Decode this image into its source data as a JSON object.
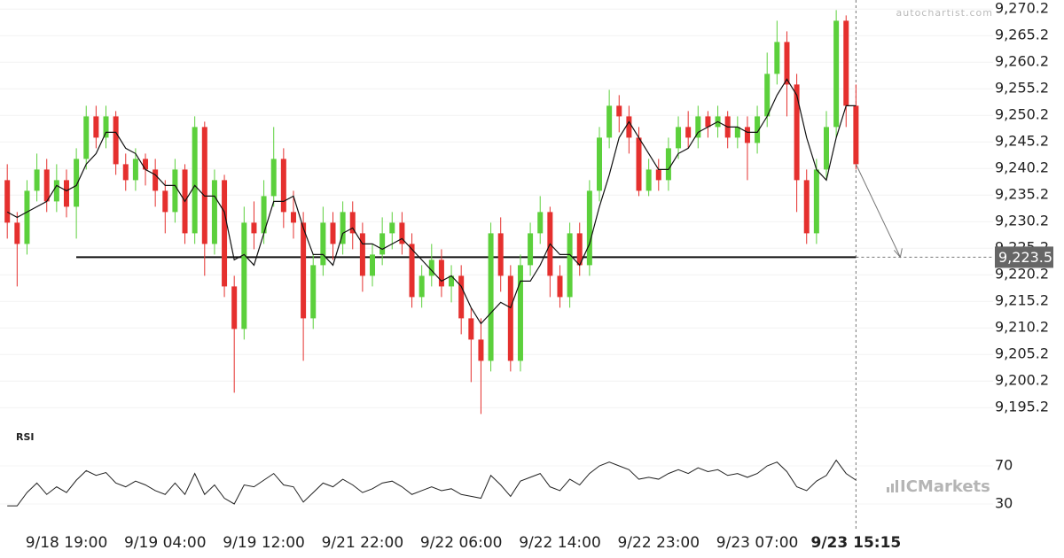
{
  "chart_data": {
    "type": "candlestick",
    "watermark": "autochartist.com",
    "brand": "ICMarkets",
    "indicator_label": "RSI",
    "categories": [
      null,
      null,
      null,
      null,
      null,
      null,
      "9/18 19:00",
      null,
      null,
      null,
      null,
      null,
      null,
      null,
      null,
      null,
      "9/19 04:00",
      null,
      null,
      null,
      null,
      null,
      null,
      null,
      null,
      null,
      "9/19 12:00",
      null,
      null,
      null,
      null,
      null,
      null,
      null,
      null,
      null,
      "9/21 22:00",
      null,
      null,
      null,
      null,
      null,
      null,
      null,
      null,
      null,
      "9/22 06:00",
      null,
      null,
      null,
      null,
      null,
      null,
      null,
      null,
      null,
      "9/22 14:00",
      null,
      null,
      null,
      null,
      null,
      null,
      null,
      null,
      null,
      "9/22 23:00",
      null,
      null,
      null,
      null,
      null,
      null,
      null,
      null,
      null,
      "9/23 07:00",
      null,
      null,
      null,
      null,
      null,
      null,
      null,
      null,
      null,
      "9/23 15:15"
    ],
    "open": [
      9238,
      9230,
      9226,
      9236,
      9240,
      9234,
      9238,
      9233,
      9242,
      9250,
      9246,
      9250,
      9241,
      9238,
      9242,
      9240,
      9236,
      9232,
      9240,
      9228,
      9248,
      9226,
      9238,
      9218,
      9210,
      9230,
      9228,
      9235,
      9242,
      9232,
      9230,
      9212,
      9222,
      9230,
      9226,
      9232,
      9228,
      9220,
      9224,
      9228,
      9230,
      9226,
      9216,
      9220,
      9223,
      9218,
      9220,
      9212,
      9208,
      9204,
      9228,
      9220,
      9204,
      9222,
      9228,
      9232,
      9220,
      9216,
      9228,
      9222,
      9236,
      9246,
      9252,
      9250,
      9246,
      9236,
      9240,
      9238,
      9244,
      9248,
      9246,
      9250,
      9248,
      9250,
      9246,
      9248,
      9245,
      9250,
      9258,
      9264,
      9256,
      9238,
      9228,
      9240,
      9248,
      9268,
      9252
    ],
    "high": [
      9241,
      9232,
      9238,
      9243,
      9242,
      9241,
      9240,
      9244,
      9252,
      9252,
      9252,
      9251,
      9243,
      9244,
      9243,
      9242,
      9238,
      9242,
      9241,
      9250,
      9249,
      9240,
      9239,
      9220,
      9233,
      9234,
      9238,
      9248,
      9244,
      9236,
      9232,
      9224,
      9233,
      9232,
      9234,
      9234,
      9230,
      9226,
      9231,
      9232,
      9232,
      9228,
      9222,
      9226,
      9225,
      9222,
      9222,
      9214,
      9212,
      9230,
      9231,
      9222,
      9224,
      9230,
      9235,
      9233,
      9222,
      9230,
      9230,
      9238,
      9248,
      9255,
      9254,
      9252,
      9248,
      9242,
      9242,
      9246,
      9250,
      9251,
      9252,
      9251,
      9252,
      9251,
      9250,
      9250,
      9252,
      9262,
      9268,
      9266,
      9258,
      9240,
      9242,
      9251,
      9270,
      9269,
      9256
    ],
    "low": [
      9227,
      9218,
      9224,
      9234,
      9232,
      9232,
      9231,
      9227,
      9240,
      9244,
      9244,
      9239,
      9236,
      9236,
      9237,
      9233,
      9228,
      9230,
      9226,
      9226,
      9220,
      9224,
      9216,
      9198,
      9208,
      9225,
      9226,
      9233,
      9229,
      9227,
      9204,
      9210,
      9220,
      9223,
      9224,
      9225,
      9217,
      9218,
      9222,
      9225,
      9224,
      9214,
      9214,
      9218,
      9216,
      9215,
      9209,
      9200,
      9194,
      9202,
      9217,
      9202,
      9202,
      9220,
      9226,
      9216,
      9214,
      9214,
      9220,
      9220,
      9234,
      9244,
      9247,
      9243,
      9235,
      9235,
      9236,
      9236,
      9242,
      9244,
      9244,
      9246,
      9246,
      9244,
      9244,
      9238,
      9243,
      9248,
      9256,
      9250,
      9232,
      9226,
      9226,
      9238,
      9246,
      9248,
      9240
    ],
    "close": [
      9230,
      9226,
      9236,
      9240,
      9234,
      9238,
      9233,
      9242,
      9250,
      9246,
      9250,
      9241,
      9238,
      9242,
      9240,
      9236,
      9232,
      9240,
      9228,
      9248,
      9226,
      9238,
      9218,
      9210,
      9230,
      9228,
      9235,
      9242,
      9232,
      9230,
      9212,
      9222,
      9230,
      9226,
      9232,
      9228,
      9220,
      9224,
      9228,
      9230,
      9226,
      9216,
      9220,
      9223,
      9218,
      9220,
      9212,
      9208,
      9204,
      9228,
      9220,
      9204,
      9222,
      9228,
      9232,
      9220,
      9216,
      9228,
      9222,
      9236,
      9246,
      9252,
      9250,
      9246,
      9236,
      9240,
      9238,
      9244,
      9248,
      9246,
      9250,
      9248,
      9250,
      9246,
      9248,
      9245,
      9250,
      9258,
      9264,
      9256,
      9238,
      9228,
      9240,
      9248,
      9268,
      9252,
      9241
    ],
    "ma": [
      9232,
      9231,
      9232,
      9233,
      9234,
      9237,
      9236,
      9237,
      9241,
      9243,
      9247,
      9247,
      9244,
      9243,
      9240,
      9239,
      9237,
      9237,
      9234,
      9237,
      9235,
      9235,
      9232,
      9223,
      9224,
      9222,
      9228,
      9234,
      9234,
      9235,
      9229,
      9224,
      9224,
      9222,
      9228,
      9229,
      9226,
      9226,
      9225,
      9226,
      9227,
      9225,
      9223,
      9221,
      9219,
      9220,
      9218,
      9214,
      9211,
      9213,
      9215,
      9214,
      9219,
      9219,
      9222,
      9226,
      9224,
      9224,
      9222,
      9226,
      9233,
      9239,
      9246,
      9249,
      9246,
      9243,
      9240,
      9240,
      9243,
      9244,
      9247,
      9248,
      9249,
      9248,
      9248,
      9247,
      9247,
      9250,
      9254,
      9257,
      9254,
      9246,
      9240,
      9238,
      9246,
      9252,
      9252
    ],
    "up_color": "#5cd03c",
    "down_color": "#e5302e",
    "ma_color": "#111111",
    "ylim": [
      9191.9,
      9271.9
    ],
    "yticks": [
      {
        "value": 9270.2,
        "label": "9,270.2"
      },
      {
        "value": 9265.2,
        "label": "9,265.2"
      },
      {
        "value": 9260.2,
        "label": "9,260.2"
      },
      {
        "value": 9255.2,
        "label": "9,255.2"
      },
      {
        "value": 9250.2,
        "label": "9,250.2"
      },
      {
        "value": 9245.2,
        "label": "9,245.2"
      },
      {
        "value": 9240.2,
        "label": "9,240.2"
      },
      {
        "value": 9235.2,
        "label": "9,235.2"
      },
      {
        "value": 9230.2,
        "label": "9,230.2"
      },
      {
        "value": 9225.2,
        "label": "9,225.2"
      },
      {
        "value": 9220.2,
        "label": "9,220.2"
      },
      {
        "value": 9215.2,
        "label": "9,215.2"
      },
      {
        "value": 9210.2,
        "label": "9,210.2"
      },
      {
        "value": 9205.2,
        "label": "9,205.2"
      },
      {
        "value": 9200.2,
        "label": "9,200.2"
      },
      {
        "value": 9195.2,
        "label": "9,195.2"
      }
    ],
    "level": {
      "value": 9223.5,
      "label": "9,223.5"
    },
    "rsi": [
      28,
      28,
      42,
      52,
      40,
      48,
      42,
      55,
      65,
      60,
      63,
      52,
      48,
      54,
      50,
      44,
      40,
      52,
      40,
      62,
      40,
      50,
      36,
      30,
      50,
      48,
      55,
      62,
      50,
      48,
      32,
      42,
      52,
      48,
      56,
      50,
      42,
      46,
      52,
      54,
      48,
      40,
      44,
      48,
      44,
      46,
      40,
      38,
      36,
      60,
      50,
      38,
      54,
      58,
      62,
      48,
      44,
      56,
      50,
      62,
      70,
      74,
      70,
      66,
      56,
      58,
      56,
      62,
      66,
      62,
      68,
      64,
      66,
      60,
      62,
      58,
      62,
      70,
      74,
      64,
      48,
      44,
      54,
      60,
      76,
      62,
      55
    ],
    "rsilim": [
      5.8,
      94.2
    ],
    "rsiticks": [
      70,
      30
    ],
    "grid": true
  }
}
